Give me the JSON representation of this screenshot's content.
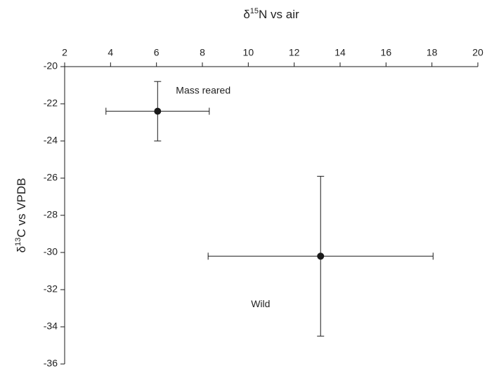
{
  "chart_data": {
    "type": "scatter",
    "x_label": {
      "symbol": "δ",
      "sup": "15",
      "text": "N vs air"
    },
    "y_label": {
      "symbol": "δ",
      "sup": "13",
      "text": "C vs VPDB"
    },
    "xlim": [
      2,
      20
    ],
    "xticks": [
      2,
      4,
      6,
      8,
      10,
      12,
      14,
      16,
      18,
      20
    ],
    "ylim": [
      -20,
      -36
    ],
    "yticks": [
      -20,
      -22,
      -24,
      -26,
      -28,
      -30,
      -32,
      -34,
      -36
    ],
    "series": [
      {
        "name": "Mass reared",
        "color": "#1a1a1a",
        "x": [
          6.05
        ],
        "values": [
          -22.4
        ],
        "xerr": [
          2.25
        ],
        "yerr": [
          1.6
        ]
      },
      {
        "name": "Wild",
        "color": "#1a1a1a",
        "x": [
          13.15
        ],
        "values": [
          -30.2
        ],
        "xerr": [
          4.9
        ],
        "yerr": [
          4.3
        ]
      }
    ]
  }
}
